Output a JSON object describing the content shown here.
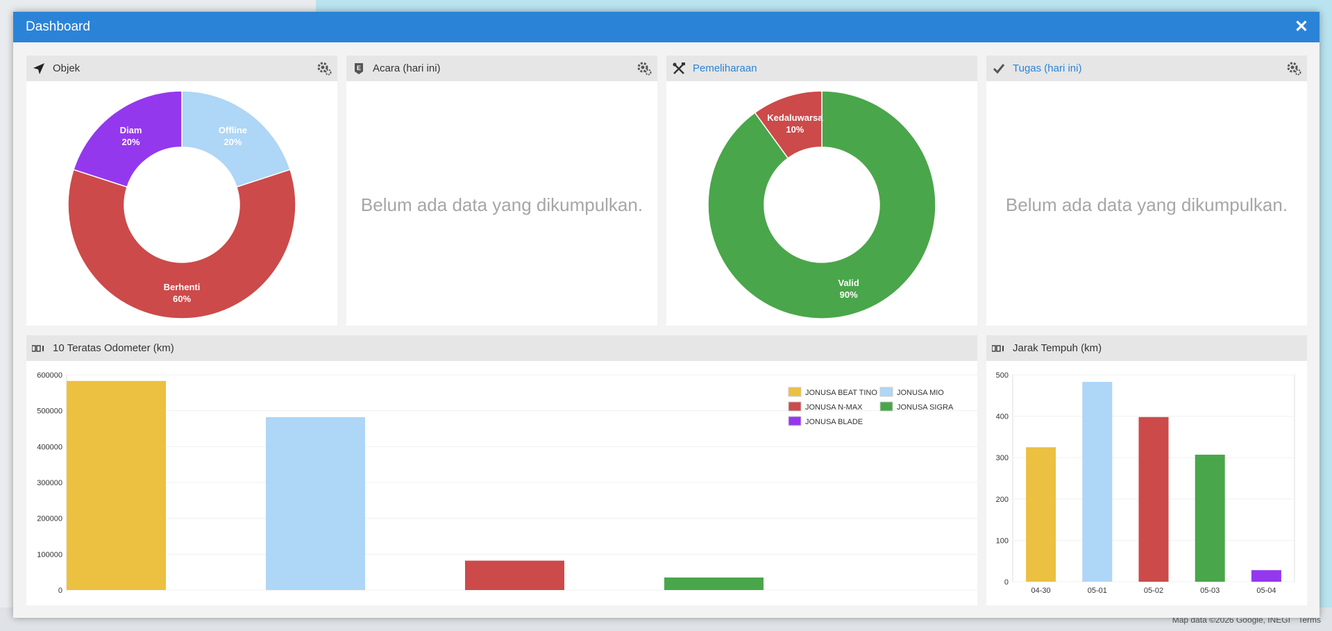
{
  "dashboard": {
    "title": "Dashboard",
    "close_icon": "close-icon"
  },
  "map": {
    "credit": "Map data ©2026 Google, INEGI",
    "terms": "Terms"
  },
  "widgets": {
    "objek": {
      "title": "Objek",
      "icon": "location-arrow-icon"
    },
    "acara": {
      "title": "Acara (hari ini)",
      "icon": "event-icon",
      "empty": "Belum ada data yang dikumpulkan."
    },
    "pemeliharaan": {
      "title": "Pemeliharaan",
      "icon": "tools-icon"
    },
    "tugas": {
      "title": "Tugas (hari ini)",
      "icon": "check-icon",
      "empty": "Belum ada data yang dikumpulkan."
    },
    "odometer": {
      "title": "10 Teratas Odometer (km)",
      "icon": "counter-icon"
    },
    "jarak": {
      "title": "Jarak Tempuh (km)",
      "icon": "counter-icon"
    }
  },
  "chart_data": [
    {
      "type": "pie",
      "slices": [
        {
          "label": "Offline",
          "value": 20,
          "color": "#aed6f6"
        },
        {
          "label": "Berhenti",
          "value": 60,
          "color": "#cc4a4a"
        },
        {
          "label": "Diam",
          "value": 20,
          "color": "#9438ee"
        }
      ]
    },
    {
      "type": "pie",
      "slices": [
        {
          "label": "Valid",
          "value": 90,
          "color": "#4aa64a"
        },
        {
          "label": "Kedaluwarsa",
          "value": 10,
          "color": "#cc4a4a"
        }
      ]
    },
    {
      "type": "bar",
      "ylim": [
        0,
        600000
      ],
      "yticks": [
        0,
        100000,
        200000,
        300000,
        400000,
        500000,
        600000
      ],
      "series": [
        {
          "name": "JONUSA BEAT TINO",
          "value": 583000,
          "color": "#ecc040"
        },
        {
          "name": "JONUSA MIO",
          "value": 482000,
          "color": "#aed6f6"
        },
        {
          "name": "JONUSA N-MAX",
          "value": 82000,
          "color": "#cc4a4a"
        },
        {
          "name": "JONUSA SIGRA",
          "value": 35000,
          "color": "#4aa64a"
        },
        {
          "name": "JONUSA BLADE",
          "value": 0,
          "color": "#9438ee"
        }
      ],
      "legend": "top-right"
    },
    {
      "type": "bar",
      "ylim": [
        0,
        500
      ],
      "yticks": [
        0,
        100,
        200,
        300,
        400,
        500
      ],
      "categories": [
        "04-30",
        "05-01",
        "05-02",
        "05-03",
        "05-04"
      ],
      "values": [
        325,
        483,
        398,
        307,
        28
      ],
      "colors": [
        "#ecc040",
        "#aed6f6",
        "#cc4a4a",
        "#4aa64a",
        "#9438ee"
      ]
    }
  ]
}
